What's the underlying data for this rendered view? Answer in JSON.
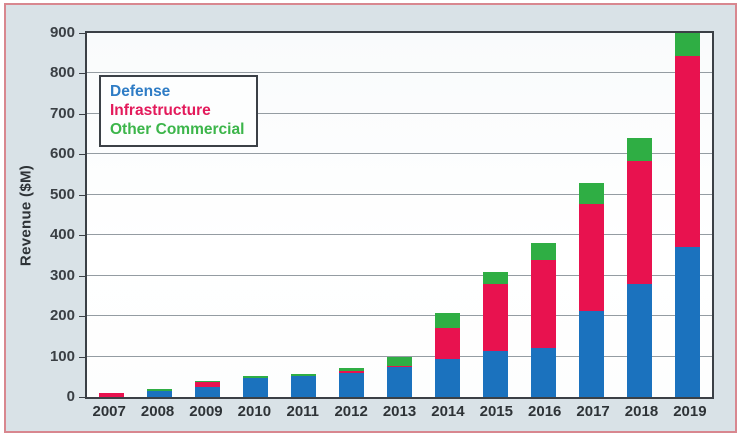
{
  "panel": {
    "background": "#D9E2E7",
    "frame_border": "#D8878F",
    "plot_border": "#3B4046"
  },
  "axis": {
    "y_title": "Revenue ($M)",
    "y_tick_labels": [
      "0",
      "100",
      "200",
      "300",
      "400",
      "500",
      "600",
      "700",
      "800",
      "900"
    ],
    "x_tick_labels": [
      "2007",
      "2008",
      "2009",
      "2010",
      "2011",
      "2012",
      "2013",
      "2014",
      "2015",
      "2016",
      "2017",
      "2018",
      "2019"
    ]
  },
  "legend": {
    "items": [
      {
        "label": "Defense",
        "color": "#2E7CC5"
      },
      {
        "label": "Infrastructure",
        "color": "#E31A5B"
      },
      {
        "label": "Other Commercial",
        "color": "#3CB54A"
      }
    ]
  },
  "chart_data": {
    "type": "bar",
    "stacked": true,
    "title": "",
    "xlabel": "",
    "ylabel": "Revenue ($M)",
    "ylim": [
      0,
      900
    ],
    "ytick_interval": 100,
    "grid": true,
    "legend_position": "top-left",
    "categories": [
      "2007",
      "2008",
      "2009",
      "2010",
      "2011",
      "2012",
      "2013",
      "2014",
      "2015",
      "2016",
      "2017",
      "2018",
      "2019"
    ],
    "series": [
      {
        "name": "Defense",
        "color": "#1B72BE",
        "values": [
          0,
          15,
          26,
          46,
          52,
          60,
          73,
          95,
          115,
          122,
          212,
          280,
          370
        ]
      },
      {
        "name": "Infrastructure",
        "color": "#E8124F",
        "values": [
          10,
          0,
          12,
          0,
          0,
          4,
          4,
          75,
          165,
          218,
          265,
          303,
          472
        ]
      },
      {
        "name": "Other Commercial",
        "color": "#2FAE44",
        "values": [
          0,
          5,
          2,
          6,
          6,
          8,
          21,
          38,
          30,
          40,
          52,
          57,
          58
        ]
      }
    ]
  }
}
